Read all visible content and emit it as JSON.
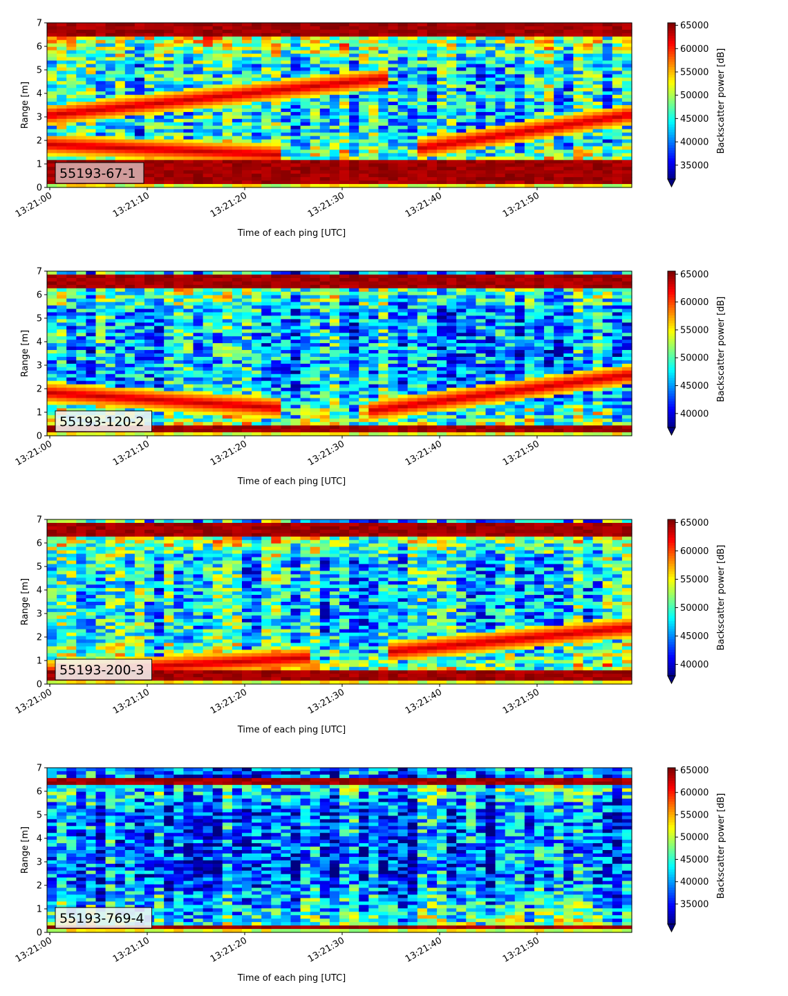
{
  "chart_data": [
    {
      "type": "heatmap",
      "label": "55193-67-1",
      "xlabel": "Time of each ping [UTC]",
      "ylabel": "Range [m]",
      "x_range_seconds": [
        "13:21:00",
        "13:21:59"
      ],
      "xticks": [
        "13:21:00",
        "13:21:10",
        "13:21:20",
        "13:21:30",
        "13:21:40",
        "13:21:50"
      ],
      "yticks": [
        "0",
        "1",
        "2",
        "3",
        "4",
        "5",
        "6",
        "7"
      ],
      "ylim": [
        0,
        7
      ],
      "colorbar": {
        "label": "Backscatter power [dB]",
        "min": 32000,
        "max": 65535,
        "ticks": [
          "35000",
          "40000",
          "45000",
          "50000",
          "55000",
          "60000",
          "65000"
        ]
      },
      "colormap": "jet",
      "bands": [
        {
          "from": 0.2,
          "to": 1.1,
          "value": 65000
        },
        {
          "from": 6.4,
          "to": 7.0,
          "value": 65000
        }
      ],
      "echo_lines": [
        {
          "start_time": "13:21:00",
          "start_range": 3.1,
          "end_time": "13:21:33",
          "end_range": 4.6
        },
        {
          "start_time": "13:21:00",
          "start_range": 1.8,
          "end_time": "13:21:22",
          "end_range": 1.4
        },
        {
          "start_time": "13:21:38",
          "start_range": 1.7,
          "end_time": "13:21:59",
          "end_range": 3.1
        }
      ]
    },
    {
      "type": "heatmap",
      "label": "55193-120-2",
      "xlabel": "Time of each ping [UTC]",
      "ylabel": "Range [m]",
      "x_range_seconds": [
        "13:21:00",
        "13:21:59"
      ],
      "xticks": [
        "13:21:00",
        "13:21:10",
        "13:21:20",
        "13:21:30",
        "13:21:40",
        "13:21:50"
      ],
      "yticks": [
        "0",
        "1",
        "2",
        "3",
        "4",
        "5",
        "6",
        "7"
      ],
      "ylim": [
        0,
        7
      ],
      "colorbar": {
        "label": "Backscatter power [dB]",
        "min": 37500,
        "max": 65535,
        "ticks": [
          "40000",
          "45000",
          "50000",
          "55000",
          "60000",
          "65000"
        ]
      },
      "colormap": "jet",
      "bands": [
        {
          "from": 0.1,
          "to": 0.5,
          "value": 65000
        },
        {
          "from": 6.3,
          "to": 6.9,
          "value": 65000
        }
      ],
      "echo_lines": [
        {
          "start_time": "13:21:00",
          "start_range": 1.8,
          "end_time": "13:21:22",
          "end_range": 1.2
        },
        {
          "start_time": "13:21:33",
          "start_range": 1.1,
          "end_time": "13:21:59",
          "end_range": 2.6
        }
      ]
    },
    {
      "type": "heatmap",
      "label": "55193-200-3",
      "xlabel": "Time of each ping [UTC]",
      "ylabel": "Range [m]",
      "x_range_seconds": [
        "13:21:00",
        "13:21:59"
      ],
      "xticks": [
        "13:21:00",
        "13:21:10",
        "13:21:20",
        "13:21:30",
        "13:21:40",
        "13:21:50"
      ],
      "yticks": [
        "0",
        "1",
        "2",
        "3",
        "4",
        "5",
        "6",
        "7"
      ],
      "ylim": [
        0,
        7
      ],
      "colorbar": {
        "label": "Backscatter power [dB]",
        "min": 38000,
        "max": 65535,
        "ticks": [
          "40000",
          "45000",
          "50000",
          "55000",
          "60000",
          "65000"
        ]
      },
      "colormap": "jet",
      "bands": [
        {
          "from": 0.15,
          "to": 0.6,
          "value": 65000
        },
        {
          "from": 6.3,
          "to": 6.8,
          "value": 65000
        }
      ],
      "echo_lines": [
        {
          "start_time": "13:21:00",
          "start_range": 0.5,
          "end_time": "13:21:25",
          "end_range": 1.1
        },
        {
          "start_time": "13:21:35",
          "start_range": 1.4,
          "end_time": "13:21:59",
          "end_range": 2.4
        }
      ]
    },
    {
      "type": "heatmap",
      "label": "55193-769-4",
      "xlabel": "Time of each ping [UTC]",
      "ylabel": "Range [m]",
      "x_range_seconds": [
        "13:21:00",
        "13:21:59"
      ],
      "xticks": [
        "13:21:00",
        "13:21:10",
        "13:21:20",
        "13:21:30",
        "13:21:40",
        "13:21:50"
      ],
      "yticks": [
        "0",
        "1",
        "2",
        "3",
        "4",
        "5",
        "6",
        "7"
      ],
      "ylim": [
        0,
        7
      ],
      "colorbar": {
        "label": "Backscatter power [dB]",
        "min": 30500,
        "max": 65535,
        "ticks": [
          "35000",
          "40000",
          "45000",
          "50000",
          "55000",
          "60000",
          "65000"
        ]
      },
      "colormap": "jet",
      "bands": [
        {
          "from": 0.15,
          "to": 0.35,
          "value": 65000
        },
        {
          "from": 6.3,
          "to": 6.55,
          "value": 65000
        }
      ],
      "echo_lines": []
    }
  ]
}
